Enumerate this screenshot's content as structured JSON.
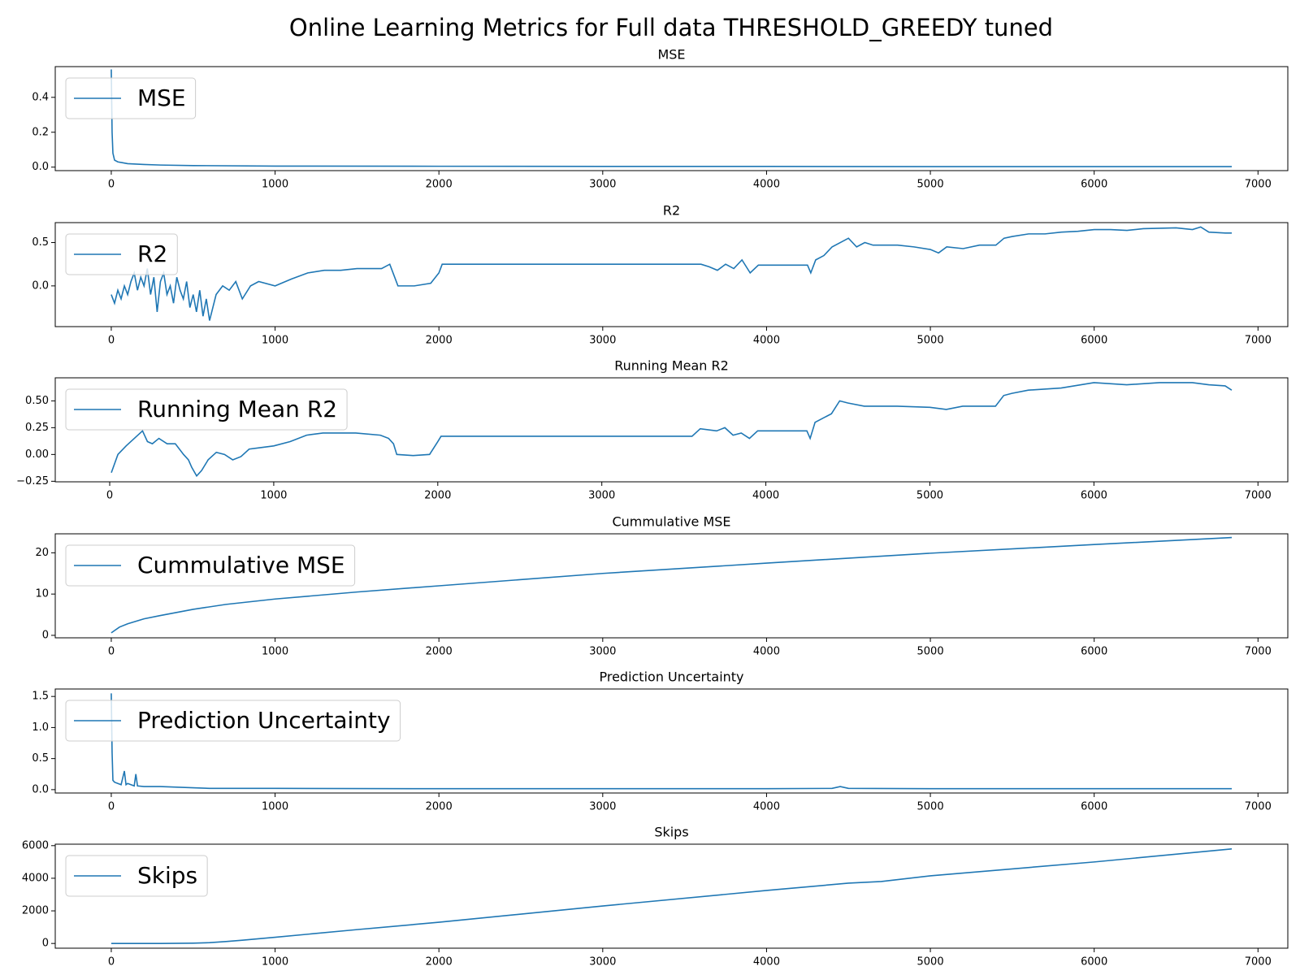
{
  "title": "Online Learning Metrics for Full data THRESHOLD_GREEDY tuned",
  "chart_data": [
    {
      "type": "line",
      "title": "MSE",
      "legend": "upper left",
      "x": [
        0,
        5,
        10,
        20,
        40,
        70,
        100,
        200,
        300,
        500,
        1000,
        2000,
        3000,
        4000,
        5000,
        6000,
        6840
      ],
      "series": [
        {
          "name": "MSE",
          "color": "#1f77b4",
          "values": [
            0.56,
            0.2,
            0.08,
            0.04,
            0.03,
            0.025,
            0.02,
            0.015,
            0.012,
            0.009,
            0.006,
            0.005,
            0.004,
            0.004,
            0.003,
            0.003,
            0.003
          ]
        }
      ],
      "xlim": [
        -342,
        7182
      ],
      "xticks": [
        0,
        1000,
        2000,
        3000,
        4000,
        5000,
        6000,
        7000
      ],
      "ylim": [
        -0.02,
        0.576
      ],
      "yticks": [
        {
          "value": 0,
          "label": "0.0"
        },
        0.2,
        0.4
      ]
    },
    {
      "type": "line",
      "title": "R2",
      "legend": "upper left",
      "x": [
        0,
        20,
        40,
        60,
        80,
        100,
        120,
        140,
        160,
        180,
        200,
        220,
        240,
        260,
        280,
        300,
        320,
        340,
        360,
        380,
        400,
        420,
        440,
        460,
        480,
        500,
        520,
        540,
        560,
        580,
        600,
        640,
        680,
        720,
        760,
        800,
        850,
        900,
        1000,
        1100,
        1200,
        1300,
        1400,
        1500,
        1650,
        1700,
        1730,
        1750,
        1850,
        1950,
        2000,
        2020,
        3600,
        3650,
        3700,
        3750,
        3800,
        3850,
        3900,
        3950,
        4250,
        4270,
        4300,
        4350,
        4400,
        4450,
        4500,
        4550,
        4600,
        4650,
        4800,
        4900,
        5000,
        5050,
        5100,
        5200,
        5300,
        5400,
        5450,
        5500,
        5600,
        5700,
        5800,
        5900,
        6000,
        6100,
        6200,
        6300,
        6500,
        6600,
        6650,
        6700,
        6800,
        6840
      ],
      "series": [
        {
          "name": "R2",
          "color": "#1f77b4",
          "values": [
            -0.1,
            -0.2,
            -0.05,
            -0.15,
            0.0,
            -0.1,
            0.05,
            0.15,
            -0.05,
            0.1,
            0.0,
            0.2,
            -0.1,
            0.1,
            -0.3,
            0.05,
            0.15,
            -0.1,
            0.0,
            -0.2,
            0.1,
            -0.05,
            -0.15,
            0.05,
            -0.25,
            -0.1,
            -0.3,
            -0.05,
            -0.35,
            -0.15,
            -0.4,
            -0.1,
            0.0,
            -0.05,
            0.05,
            -0.15,
            0.0,
            0.05,
            0.0,
            0.08,
            0.15,
            0.18,
            0.18,
            0.2,
            0.2,
            0.25,
            0.1,
            0.0,
            0.0,
            0.03,
            0.15,
            0.25,
            0.25,
            0.22,
            0.18,
            0.25,
            0.2,
            0.3,
            0.15,
            0.24,
            0.24,
            0.15,
            0.3,
            0.35,
            0.45,
            0.5,
            0.55,
            0.45,
            0.5,
            0.47,
            0.47,
            0.45,
            0.42,
            0.38,
            0.45,
            0.43,
            0.47,
            0.47,
            0.55,
            0.57,
            0.6,
            0.6,
            0.62,
            0.63,
            0.65,
            0.65,
            0.64,
            0.66,
            0.67,
            0.65,
            0.68,
            0.62,
            0.61,
            0.61
          ]
        }
      ],
      "xlim": [
        -342,
        7182
      ],
      "xticks": [
        0,
        1000,
        2000,
        3000,
        4000,
        5000,
        6000,
        7000
      ],
      "ylim": [
        -0.47,
        0.73
      ],
      "yticks": [
        {
          "value": 0,
          "label": "0.0"
        },
        0.5
      ]
    },
    {
      "type": "line",
      "title": "Running Mean R2",
      "legend": "upper left",
      "x": [
        10,
        50,
        100,
        150,
        200,
        230,
        260,
        300,
        350,
        400,
        450,
        480,
        500,
        530,
        560,
        600,
        650,
        700,
        750,
        800,
        850,
        900,
        1000,
        1100,
        1200,
        1300,
        1400,
        1500,
        1650,
        1700,
        1730,
        1750,
        1850,
        1950,
        2000,
        2020,
        3550,
        3600,
        3700,
        3750,
        3800,
        3850,
        3900,
        3950,
        4250,
        4270,
        4300,
        4400,
        4450,
        4500,
        4600,
        4700,
        4800,
        5000,
        5100,
        5200,
        5400,
        5450,
        5500,
        5600,
        5800,
        6000,
        6200,
        6400,
        6600,
        6700,
        6800,
        6840
      ],
      "series": [
        {
          "name": "Running Mean R2",
          "color": "#1f77b4",
          "values": [
            -0.17,
            0.0,
            0.08,
            0.15,
            0.22,
            0.12,
            0.1,
            0.15,
            0.1,
            0.1,
            0.0,
            -0.05,
            -0.12,
            -0.2,
            -0.15,
            -0.05,
            0.02,
            0.0,
            -0.05,
            -0.02,
            0.05,
            0.06,
            0.08,
            0.12,
            0.18,
            0.2,
            0.2,
            0.2,
            0.18,
            0.15,
            0.1,
            0.0,
            -0.01,
            0.0,
            0.12,
            0.17,
            0.17,
            0.24,
            0.22,
            0.25,
            0.18,
            0.2,
            0.15,
            0.22,
            0.22,
            0.15,
            0.3,
            0.38,
            0.5,
            0.48,
            0.45,
            0.45,
            0.45,
            0.44,
            0.42,
            0.45,
            0.45,
            0.55,
            0.57,
            0.6,
            0.62,
            0.67,
            0.65,
            0.67,
            0.67,
            0.65,
            0.64,
            0.6
          ]
        }
      ],
      "xlim": [
        -332,
        7182
      ],
      "xticks": [
        0,
        1000,
        2000,
        3000,
        4000,
        5000,
        6000,
        7000
      ],
      "ylim": [
        -0.255,
        0.715
      ],
      "yticks": [
        {
          "value": -0.25,
          "label": "−0.25"
        },
        {
          "value": 0,
          "label": "0.00"
        },
        0.25,
        {
          "value": 0.5,
          "label": "0.50"
        }
      ]
    },
    {
      "type": "line",
      "title": "Cummulative MSE",
      "legend": "upper left",
      "x": [
        0,
        50,
        100,
        200,
        300,
        500,
        700,
        1000,
        1500,
        2000,
        3000,
        4000,
        5000,
        6000,
        6840
      ],
      "series": [
        {
          "name": "Cummulative MSE",
          "color": "#1f77b4",
          "values": [
            0.6,
            2,
            2.8,
            4,
            4.8,
            6.3,
            7.5,
            8.8,
            10.5,
            12,
            15,
            17.5,
            19.9,
            22,
            23.7
          ]
        }
      ],
      "xlim": [
        -342,
        7182
      ],
      "xticks": [
        0,
        1000,
        2000,
        3000,
        4000,
        5000,
        6000,
        7000
      ],
      "ylim": [
        -0.6,
        24.6
      ],
      "yticks": [
        0,
        10,
        20
      ]
    },
    {
      "type": "line",
      "title": "Prediction Uncertainty",
      "legend": "upper left",
      "x": [
        0,
        5,
        10,
        20,
        40,
        60,
        80,
        90,
        100,
        140,
        150,
        160,
        200,
        300,
        400,
        500,
        600,
        800,
        1000,
        2000,
        3000,
        4000,
        4400,
        4450,
        4500,
        5000,
        6000,
        6840
      ],
      "series": [
        {
          "name": "Prediction Uncertainty",
          "color": "#1f77b4",
          "values": [
            1.55,
            0.6,
            0.15,
            0.12,
            0.1,
            0.08,
            0.3,
            0.08,
            0.1,
            0.06,
            0.25,
            0.06,
            0.05,
            0.05,
            0.04,
            0.03,
            0.02,
            0.02,
            0.02,
            0.015,
            0.015,
            0.015,
            0.02,
            0.05,
            0.02,
            0.015,
            0.015,
            0.015
          ]
        }
      ],
      "xlim": [
        -342,
        7182
      ],
      "xticks": [
        0,
        1000,
        2000,
        3000,
        4000,
        5000,
        6000,
        7000
      ],
      "ylim": [
        -0.054,
        1.62
      ],
      "yticks": [
        {
          "value": 0,
          "label": "0.0"
        },
        0.5,
        {
          "value": 1,
          "label": "1.0"
        },
        1.5
      ]
    },
    {
      "type": "line",
      "title": "Skips",
      "legend": "upper left",
      "x": [
        0,
        300,
        500,
        600,
        700,
        800,
        1000,
        1500,
        2000,
        3000,
        4000,
        4500,
        4700,
        5000,
        6000,
        6840
      ],
      "series": [
        {
          "name": "Skips",
          "color": "#1f77b4",
          "values": [
            0,
            0,
            20,
            50,
            120,
            200,
            380,
            850,
            1300,
            2300,
            3250,
            3700,
            3800,
            4150,
            5000,
            5800
          ]
        }
      ],
      "xlim": [
        -342,
        7182
      ],
      "xticks": [
        0,
        1000,
        2000,
        3000,
        4000,
        5000,
        6000,
        7000
      ],
      "ylim": [
        -290,
        6090
      ],
      "yticks": [
        0,
        2000,
        4000,
        6000
      ]
    }
  ]
}
